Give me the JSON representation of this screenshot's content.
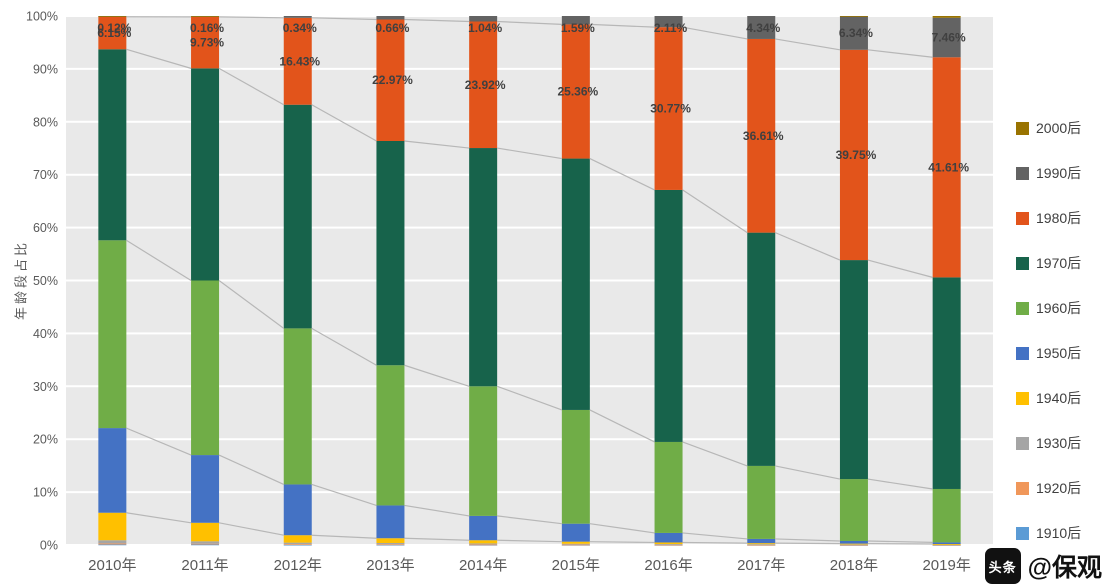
{
  "chart_data": {
    "type": "bar",
    "subtype": "stacked-100-percent",
    "title": "",
    "ylabel": "年龄段占比",
    "ylim": [
      0,
      100
    ],
    "yticks": [
      "0%",
      "10%",
      "20%",
      "30%",
      "40%",
      "50%",
      "60%",
      "70%",
      "80%",
      "90%",
      "100%"
    ],
    "categories": [
      "2010年",
      "2011年",
      "2012年",
      "2013年",
      "2014年",
      "2015年",
      "2016年",
      "2017年",
      "2018年",
      "2019年"
    ],
    "series": [
      {
        "name": "1910后",
        "color": "#5B9BD5",
        "values": [
          0.1,
          0.1,
          0.05,
          0.05,
          0.04,
          0.03,
          0.02,
          0.02,
          0.01,
          0.01
        ]
      },
      {
        "name": "1920后",
        "color": "#F0975A",
        "values": [
          0.2,
          0.15,
          0.1,
          0.08,
          0.06,
          0.05,
          0.04,
          0.03,
          0.02,
          0.02
        ]
      },
      {
        "name": "1930后",
        "color": "#A5A5A5",
        "values": [
          0.6,
          0.45,
          0.3,
          0.25,
          0.2,
          0.15,
          0.12,
          0.1,
          0.08,
          0.06
        ]
      },
      {
        "name": "1940后",
        "color": "#FFC000",
        "values": [
          5.2,
          3.5,
          1.4,
          0.9,
          0.6,
          0.4,
          0.3,
          0.2,
          0.15,
          0.1
        ]
      },
      {
        "name": "1950后",
        "color": "#4472C4",
        "values": [
          16.0,
          12.8,
          9.6,
          6.2,
          4.6,
          3.4,
          1.8,
          0.8,
          0.5,
          0.3
        ]
      },
      {
        "name": "1960后",
        "color": "#70AD47",
        "values": [
          35.5,
          33.0,
          29.5,
          26.5,
          24.5,
          21.5,
          17.2,
          13.8,
          11.7,
          10.1
        ]
      },
      {
        "name": "1970后",
        "color": "#17634B",
        "values": [
          36.11,
          40.1,
          42.28,
          42.39,
          45.04,
          47.52,
          47.64,
          44.1,
          41.4,
          40.0
        ]
      },
      {
        "name": "1980后",
        "color": "#E2541B",
        "values": [
          6.15,
          9.73,
          16.43,
          22.97,
          23.92,
          25.36,
          30.77,
          36.61,
          39.75,
          41.61
        ]
      },
      {
        "name": "1990后",
        "color": "#636363",
        "values": [
          0.12,
          0.16,
          0.34,
          0.66,
          1.04,
          1.59,
          2.11,
          4.34,
          6.34,
          7.46
        ]
      },
      {
        "name": "2000后",
        "color": "#997300",
        "values": [
          0.02,
          0.01,
          0.0,
          0.0,
          0.0,
          0.0,
          0.0,
          0.0,
          0.05,
          0.34
        ]
      }
    ],
    "label_series": [
      "1980后",
      "1990后"
    ],
    "legend_position": "right",
    "legend_order_top_to_bottom": [
      "2000后",
      "1990后",
      "1980后",
      "1970后",
      "1960后",
      "1950后",
      "1940后",
      "1930后",
      "1920后",
      "1910后"
    ],
    "grid": true,
    "series_lines": true,
    "plot_bg": "#E9E9E9",
    "grid_color": "#FFFFFF",
    "axis_text_color": "#595959",
    "label_text_color": "#404040",
    "series_line_color": "#B7B7B7"
  },
  "watermark": {
    "badge": "头条",
    "handle": "@保观"
  }
}
